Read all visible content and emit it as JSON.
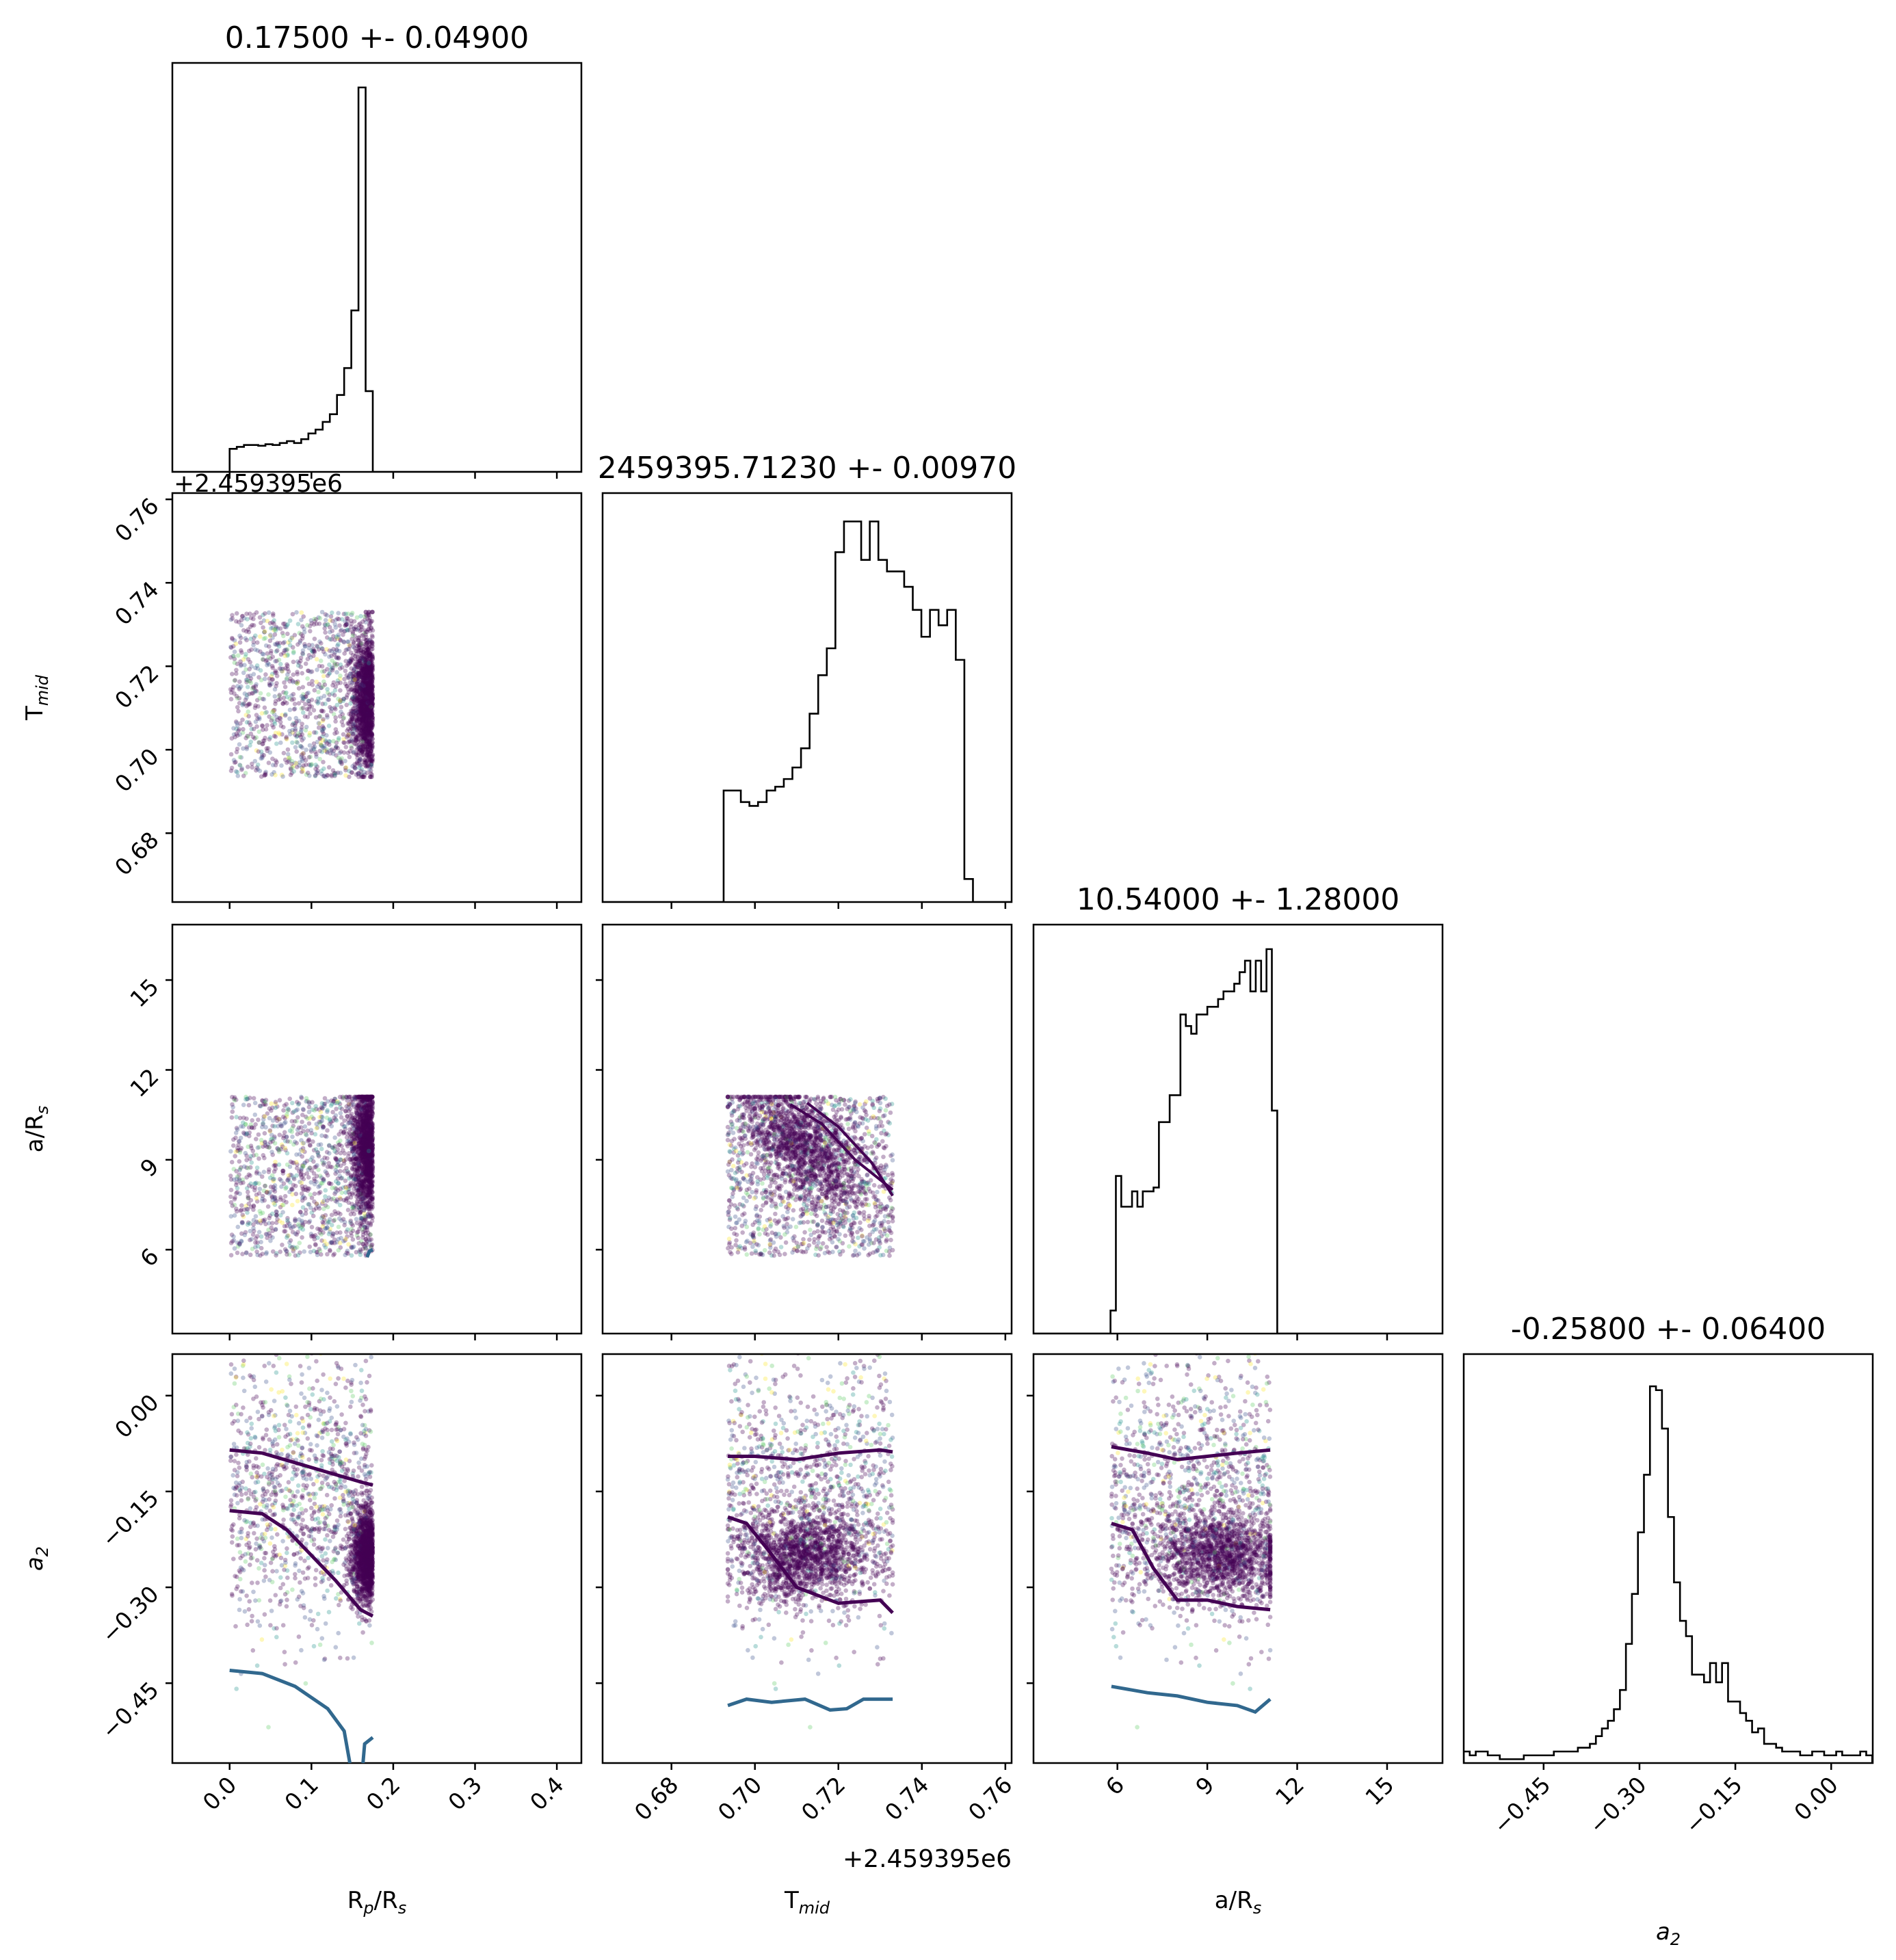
{
  "chart_data": {
    "type": "corner",
    "parameters": [
      {
        "key": "rprs",
        "axis_label": "R",
        "axis_label_sub": "p",
        "axis_label_tail": "/R",
        "axis_label_sub2": "s",
        "title": "0.17500 +- 0.04900",
        "range": [
          -0.07,
          0.43
        ],
        "ticks": [
          0.0,
          0.1,
          0.2,
          0.3,
          0.4
        ],
        "tick_labels": [
          "0.0",
          "0.1",
          "0.2",
          "0.3",
          "0.4"
        ]
      },
      {
        "key": "tmid",
        "axis_label": "T",
        "axis_label_sub": "mid",
        "axis_label_tail": "",
        "axis_label_sub2": "",
        "title": "2459395.71230 +- 0.00970",
        "range": [
          0.6635,
          0.7615
        ],
        "offset_text": "+2.459395e6",
        "ticks": [
          0.68,
          0.7,
          0.72,
          0.74,
          0.76
        ],
        "tick_labels": [
          "0.68",
          "0.70",
          "0.72",
          "0.74",
          "0.76"
        ]
      },
      {
        "key": "ars",
        "axis_label": "a/R",
        "axis_label_sub": "s",
        "axis_label_tail": "",
        "axis_label_sub2": "",
        "title": "10.54000 +- 1.28000",
        "range": [
          3.2,
          16.85
        ],
        "ticks": [
          6,
          9,
          12,
          15
        ],
        "tick_labels": [
          "6",
          "9",
          "12",
          "15"
        ]
      },
      {
        "key": "a2",
        "axis_label": "a",
        "axis_label_sub": "2",
        "axis_label_tail": "",
        "axis_label_sub2": "",
        "italic": true,
        "title": "-0.25800 +- 0.06400",
        "range": [
          -0.575,
          0.065
        ],
        "ticks": [
          -0.45,
          -0.3,
          -0.15,
          0.0
        ],
        "tick_labels": [
          "−0.45",
          "−0.30",
          "−0.15",
          "0.00"
        ]
      }
    ],
    "histograms": {
      "rprs": {
        "bin_edges_start": 0.0,
        "bin_width": 0.00875,
        "counts": [
          0.06,
          0.065,
          0.07,
          0.07,
          0.068,
          0.072,
          0.07,
          0.075,
          0.08,
          0.075,
          0.085,
          0.1,
          0.11,
          0.13,
          0.15,
          0.2,
          0.27,
          0.42,
          1.0,
          0.21
        ]
      },
      "tmid": {
        "bin_edges_start": 0.6925,
        "bin_width": 0.00206,
        "counts": [
          0.29,
          0.29,
          0.26,
          0.25,
          0.26,
          0.29,
          0.3,
          0.32,
          0.35,
          0.4,
          0.49,
          0.59,
          0.66,
          0.91,
          0.99,
          0.99,
          0.89,
          0.99,
          0.89,
          0.86,
          0.86,
          0.82,
          0.76,
          0.69,
          0.76,
          0.72,
          0.76,
          0.63,
          0.06
        ]
      },
      "ars": {
        "bin_edges_start": 5.77,
        "bin_width": 0.1795,
        "counts": [
          0.06,
          0.41,
          0.33,
          0.33,
          0.37,
          0.33,
          0.37,
          0.37,
          0.38,
          0.55,
          0.55,
          0.62,
          0.62,
          0.83,
          0.8,
          0.78,
          0.83,
          0.83,
          0.85,
          0.85,
          0.87,
          0.89,
          0.89,
          0.91,
          0.94,
          0.97,
          0.89,
          0.97,
          0.89,
          1.0,
          0.58
        ]
      },
      "a2": {
        "bin_edges_start": -0.575,
        "bin_width": 0.0094,
        "counts": [
          0.03,
          0.02,
          0.03,
          0.03,
          0.02,
          0.02,
          0.01,
          0.01,
          0.01,
          0.01,
          0.02,
          0.02,
          0.02,
          0.02,
          0.02,
          0.03,
          0.03,
          0.03,
          0.03,
          0.04,
          0.04,
          0.05,
          0.07,
          0.09,
          0.11,
          0.14,
          0.19,
          0.31,
          0.44,
          0.6,
          0.75,
          0.98,
          0.97,
          0.87,
          0.64,
          0.47,
          0.37,
          0.33,
          0.23,
          0.23,
          0.21,
          0.26,
          0.21,
          0.26,
          0.16,
          0.16,
          0.13,
          0.11,
          0.08,
          0.09,
          0.05,
          0.05,
          0.04,
          0.03,
          0.03,
          0.03,
          0.02,
          0.02,
          0.03,
          0.03,
          0.02,
          0.02,
          0.03,
          0.02,
          0.02,
          0.02,
          0.03,
          0.02
        ]
      }
    },
    "scatter_color_scale": [
      "#440154",
      "#3b528b",
      "#21918c",
      "#5ec962",
      "#fde725"
    ],
    "contour_colors": {
      "inner": "#440154",
      "outer": "#31688e"
    }
  }
}
